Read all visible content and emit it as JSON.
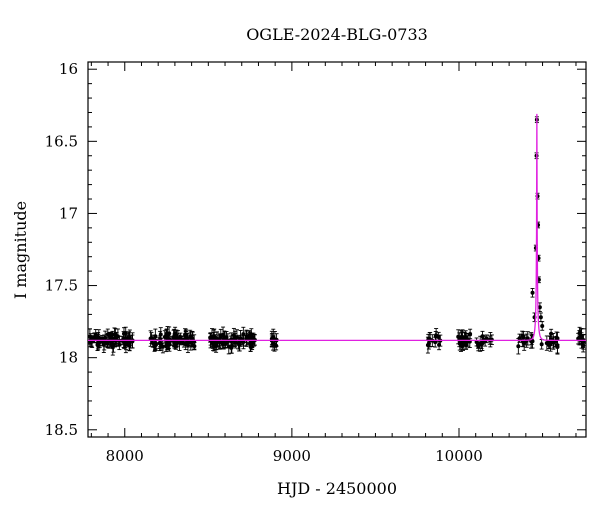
{
  "chart_data": {
    "type": "scatter",
    "title": "OGLE-2024-BLG-0733",
    "xlabel": "HJD - 2450000",
    "ylabel": "I magnitude",
    "xlim": [
      7780,
      10760
    ],
    "ylim": [
      18.55,
      15.95
    ],
    "y_inverted": true,
    "xticks": [
      8000,
      9000,
      10000
    ],
    "yticks": [
      16,
      16.5,
      17,
      17.5,
      18,
      18.5
    ],
    "grid": false,
    "colors": {
      "data": "#000000",
      "model": "#e020e0"
    },
    "baseline_mag": 17.88,
    "seasons": [
      {
        "start": 7790,
        "end": 8050,
        "n": 70
      },
      {
        "start": 8150,
        "end": 8420,
        "n": 75
      },
      {
        "start": 8510,
        "end": 8780,
        "n": 75
      },
      {
        "start": 8870,
        "end": 8920,
        "n": 10
      },
      {
        "start": 9800,
        "end": 9890,
        "n": 12
      },
      {
        "start": 9980,
        "end": 10200,
        "n": 35
      },
      {
        "start": 10340,
        "end": 10440,
        "n": 14
      },
      {
        "start": 10490,
        "end": 10590,
        "n": 14
      },
      {
        "start": 10700,
        "end": 10760,
        "n": 10
      }
    ],
    "event_points": [
      {
        "x": 10440,
        "y": 17.55,
        "err": 0.03
      },
      {
        "x": 10452,
        "y": 17.72,
        "err": 0.03
      },
      {
        "x": 10460,
        "y": 17.24,
        "err": 0.02
      },
      {
        "x": 10464,
        "y": 16.6,
        "err": 0.02
      },
      {
        "x": 10466,
        "y": 16.35,
        "err": 0.02
      },
      {
        "x": 10470,
        "y": 16.88,
        "err": 0.02
      },
      {
        "x": 10473,
        "y": 17.08,
        "err": 0.02
      },
      {
        "x": 10476,
        "y": 17.31,
        "err": 0.02
      },
      {
        "x": 10478,
        "y": 17.46,
        "err": 0.02
      },
      {
        "x": 10484,
        "y": 17.65,
        "err": 0.03
      },
      {
        "x": 10490,
        "y": 17.72,
        "err": 0.03
      },
      {
        "x": 10498,
        "y": 17.78,
        "err": 0.03
      }
    ],
    "model": {
      "t0": 10466,
      "peak_mag": 16.31,
      "baseline_mag": 17.88,
      "width_days": 14
    }
  }
}
